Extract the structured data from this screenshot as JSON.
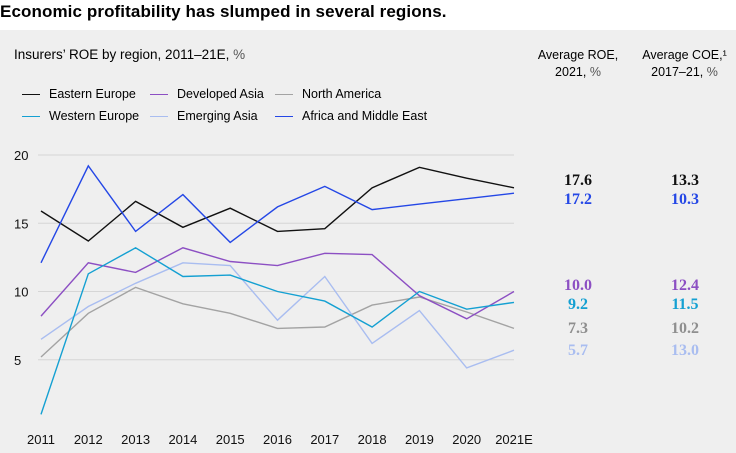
{
  "headline": "Economic profitability has slumped in several regions.",
  "subtitle": {
    "text": "Insurers’ ROE by region, 2011–21E,",
    "unit": "%"
  },
  "columns": {
    "roe": {
      "line1": "Average ROE,",
      "line2": "2021,",
      "unit": "%"
    },
    "coe": {
      "line1": "Average COE,¹",
      "line2": "2017–21,",
      "unit": "%"
    }
  },
  "chart_data": {
    "type": "line",
    "title": "Insurers’ ROE by region, 2011–21E, %",
    "x": [
      "2011",
      "2012",
      "2013",
      "2014",
      "2015",
      "2016",
      "2017",
      "2018",
      "2019",
      "2020",
      "2021E"
    ],
    "yticks": [
      5,
      10,
      15,
      20
    ],
    "ylim": [
      0,
      21
    ],
    "grid": true,
    "legend_position": "top-left",
    "series": [
      {
        "name": "Eastern Europe",
        "color": "#111111",
        "values": [
          15.9,
          13.7,
          16.6,
          14.7,
          16.1,
          14.4,
          14.6,
          17.6,
          19.1,
          18.3,
          17.6
        ],
        "avg_roe": "17.6",
        "avg_coe": "13.3"
      },
      {
        "name": "Western Europe",
        "color": "#14a0d2",
        "values": [
          1.0,
          11.3,
          13.2,
          11.1,
          11.2,
          10.0,
          9.3,
          7.4,
          10.0,
          8.7,
          9.2
        ],
        "avg_roe": "9.2",
        "avg_coe": "11.5"
      },
      {
        "name": "Developed Asia",
        "color": "#8c4fc3",
        "values": [
          8.2,
          12.1,
          11.4,
          13.2,
          12.2,
          11.9,
          12.8,
          12.7,
          9.7,
          8.0,
          10.0
        ],
        "avg_roe": "10.0",
        "avg_coe": "12.4"
      },
      {
        "name": "Emerging Asia",
        "color": "#a9bdf0",
        "values": [
          6.5,
          8.9,
          10.6,
          12.1,
          11.9,
          7.9,
          11.1,
          6.2,
          8.6,
          4.4,
          5.7
        ],
        "avg_roe": "5.7",
        "avg_coe": "13.0"
      },
      {
        "name": "North America",
        "color": "#a3a3a3",
        "values": [
          5.2,
          8.4,
          10.3,
          9.1,
          8.4,
          7.3,
          7.4,
          9.0,
          9.6,
          8.5,
          7.3
        ],
        "avg_roe": "7.3",
        "avg_coe": "10.2"
      },
      {
        "name": "Africa and Middle East",
        "color": "#2447e6",
        "values": [
          12.1,
          19.2,
          14.4,
          17.1,
          13.6,
          16.2,
          17.7,
          16.0,
          16.4,
          16.8,
          17.2
        ],
        "avg_roe": "17.2",
        "avg_coe": "10.3"
      }
    ]
  }
}
